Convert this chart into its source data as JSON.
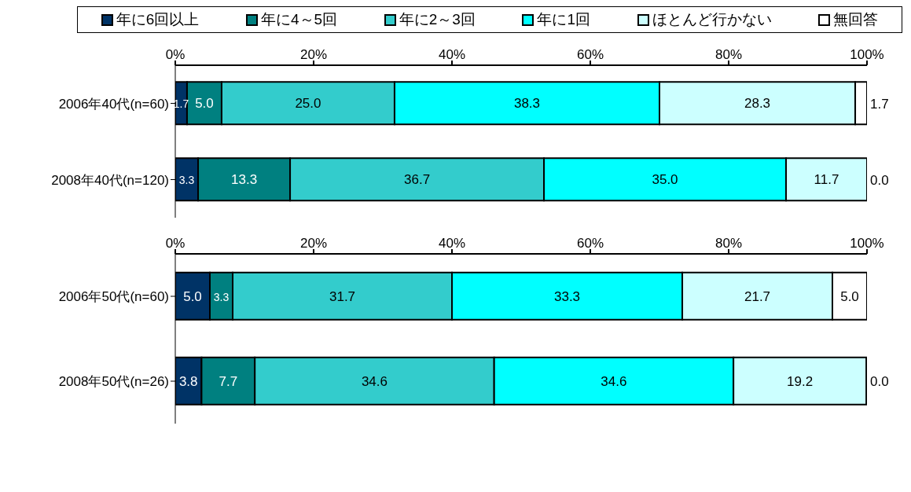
{
  "chart_data": [
    {
      "type": "bar",
      "orientation": "horizontal",
      "stacked": true,
      "legend": "top",
      "grid": false,
      "categories": [
        "2006年40代(n=60)",
        "2008年40代(n=120)"
      ],
      "xlim": [
        0,
        100
      ],
      "xticks": [
        {
          "value": 0,
          "label": "0%"
        },
        {
          "value": 20,
          "label": "20%"
        },
        {
          "value": 40,
          "label": "40%"
        },
        {
          "value": 60,
          "label": "60%"
        },
        {
          "value": 80,
          "label": "80%"
        },
        {
          "value": 100,
          "label": "100%"
        }
      ],
      "series": [
        {
          "name": "年に6回以上",
          "color": "#003366",
          "values": [
            1.7,
            3.3
          ],
          "value_labels": [
            "1.7",
            "3.3"
          ]
        },
        {
          "name": "年に4～5回",
          "color": "#008080",
          "values": [
            5.0,
            13.3
          ],
          "value_labels": [
            "5.0",
            "13.3"
          ]
        },
        {
          "name": "年に2～3回",
          "color": "#33cccc",
          "values": [
            25.0,
            36.7
          ],
          "value_labels": [
            "25.0",
            "36.7"
          ]
        },
        {
          "name": "年に1回",
          "color": "#00ffff",
          "values": [
            38.3,
            35.0
          ],
          "value_labels": [
            "38.3",
            "35.0"
          ]
        },
        {
          "name": "ほとんど行かない",
          "color": "#ccffff",
          "values": [
            28.3,
            11.7
          ],
          "value_labels": [
            "28.3",
            "11.7"
          ]
        },
        {
          "name": "無回答",
          "color": "#ffffff",
          "values": [
            1.7,
            0.0
          ],
          "value_labels": [
            "1.7",
            "0.0"
          ]
        }
      ]
    },
    {
      "type": "bar",
      "orientation": "horizontal",
      "stacked": true,
      "grid": false,
      "categories": [
        "2006年50代(n=60)",
        "2008年50代(n=26)"
      ],
      "xlim": [
        0,
        100
      ],
      "xticks": [
        {
          "value": 0,
          "label": "0%"
        },
        {
          "value": 20,
          "label": "20%"
        },
        {
          "value": 40,
          "label": "40%"
        },
        {
          "value": 60,
          "label": "60%"
        },
        {
          "value": 80,
          "label": "80%"
        },
        {
          "value": 100,
          "label": "100%"
        }
      ],
      "series": [
        {
          "color": "#003366",
          "values": [
            5.0,
            3.8
          ],
          "value_labels": [
            "5.0",
            "3.8"
          ]
        },
        {
          "color": "#008080",
          "values": [
            3.3,
            7.7
          ],
          "value_labels": [
            "3.3",
            "7.7"
          ]
        },
        {
          "color": "#33cccc",
          "values": [
            31.7,
            34.6
          ],
          "value_labels": [
            "31.7",
            "34.6"
          ]
        },
        {
          "color": "#00ffff",
          "values": [
            33.3,
            34.6
          ],
          "value_labels": [
            "33.3",
            "34.6"
          ]
        },
        {
          "color": "#ccffff",
          "values": [
            21.7,
            19.2
          ],
          "value_labels": [
            "21.7",
            "19.2"
          ]
        },
        {
          "color": "#ffffff",
          "values": [
            5.0,
            0.0
          ],
          "value_labels": [
            "5.0",
            "0.0"
          ]
        }
      ]
    }
  ]
}
